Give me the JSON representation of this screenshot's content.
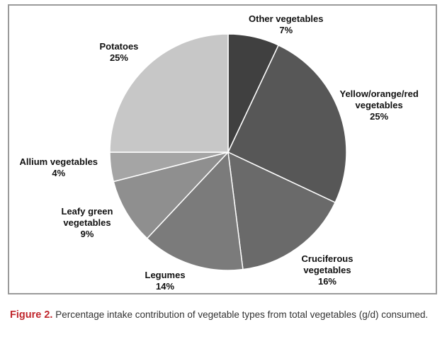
{
  "chart_data": {
    "type": "pie",
    "title": "",
    "start_angle_deg": 0,
    "direction": "clockwise",
    "slices": [
      {
        "label_lines": [
          "Other vegetables"
        ],
        "value": 7,
        "value_label": "7%",
        "color": "#404040"
      },
      {
        "label_lines": [
          "Yellow/orange/red",
          "vegetables"
        ],
        "value": 25,
        "value_label": "25%",
        "color": "#575757"
      },
      {
        "label_lines": [
          "Cruciferous",
          "vegetables"
        ],
        "value": 16,
        "value_label": "16%",
        "color": "#6a6a6a"
      },
      {
        "label_lines": [
          "Legumes"
        ],
        "value": 14,
        "value_label": "14%",
        "color": "#7b7b7b"
      },
      {
        "label_lines": [
          "Leafy green",
          "vegetables"
        ],
        "value": 9,
        "value_label": "9%",
        "color": "#8f8f8f"
      },
      {
        "label_lines": [
          "Allium vegetables"
        ],
        "value": 4,
        "value_label": "4%",
        "color": "#a5a5a5"
      },
      {
        "label_lines": [
          "Potatoes"
        ],
        "value": 25,
        "value_label": "25%",
        "color": "#c7c7c7"
      }
    ]
  },
  "caption": {
    "figure_label": "Figure 2.",
    "text": "Percentage intake contribution of vegetable types from total vegetables (g/d) consumed."
  }
}
